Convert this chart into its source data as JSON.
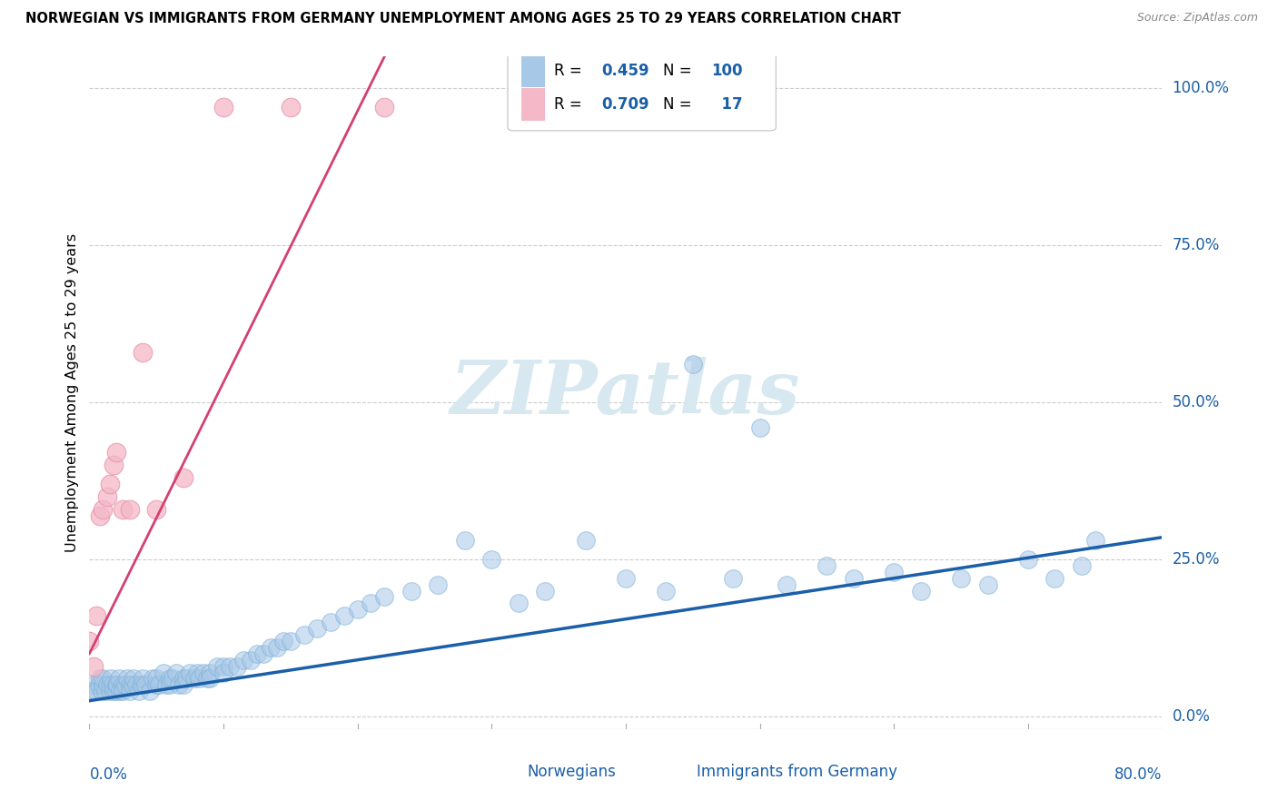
{
  "title": "NORWEGIAN VS IMMIGRANTS FROM GERMANY UNEMPLOYMENT AMONG AGES 25 TO 29 YEARS CORRELATION CHART",
  "source": "Source: ZipAtlas.com",
  "ylabel": "Unemployment Among Ages 25 to 29 years",
  "ytick_vals": [
    0.0,
    0.25,
    0.5,
    0.75,
    1.0
  ],
  "ytick_labels": [
    "0.0%",
    "25.0%",
    "50.0%",
    "75.0%",
    "100.0%"
  ],
  "xlim": [
    0.0,
    0.8
  ],
  "ylim": [
    -0.02,
    1.05
  ],
  "legend_blue_R": "0.459",
  "legend_blue_N": "100",
  "legend_pink_R": "0.709",
  "legend_pink_N": "17",
  "blue_fill": "#a8c8e8",
  "blue_edge": "#7aafd4",
  "blue_line_color": "#1a5fa8",
  "pink_fill": "#f4b8c8",
  "pink_edge": "#e890a8",
  "pink_line_color": "#d44070",
  "legend_text_color": "#1a5fa8",
  "watermark_color": "#d8e8f0",
  "norwegians_x": [
    0.0,
    0.003,
    0.005,
    0.007,
    0.008,
    0.009,
    0.01,
    0.01,
    0.012,
    0.013,
    0.015,
    0.015,
    0.016,
    0.017,
    0.018,
    0.02,
    0.02,
    0.021,
    0.022,
    0.023,
    0.025,
    0.025,
    0.027,
    0.028,
    0.03,
    0.03,
    0.032,
    0.033,
    0.035,
    0.037,
    0.038,
    0.04,
    0.04,
    0.042,
    0.045,
    0.047,
    0.05,
    0.05,
    0.052,
    0.055,
    0.057,
    0.06,
    0.06,
    0.062,
    0.065,
    0.067,
    0.07,
    0.07,
    0.072,
    0.075,
    0.078,
    0.08,
    0.082,
    0.085,
    0.088,
    0.09,
    0.09,
    0.095,
    0.1,
    0.1,
    0.105,
    0.11,
    0.115,
    0.12,
    0.125,
    0.13,
    0.135,
    0.14,
    0.145,
    0.15,
    0.16,
    0.17,
    0.18,
    0.19,
    0.2,
    0.21,
    0.22,
    0.24,
    0.26,
    0.28,
    0.3,
    0.32,
    0.34,
    0.37,
    0.4,
    0.43,
    0.45,
    0.48,
    0.5,
    0.52,
    0.55,
    0.57,
    0.6,
    0.62,
    0.65,
    0.67,
    0.7,
    0.72,
    0.74,
    0.75
  ],
  "norwegians_y": [
    0.04,
    0.05,
    0.04,
    0.05,
    0.06,
    0.04,
    0.05,
    0.06,
    0.04,
    0.05,
    0.04,
    0.05,
    0.06,
    0.05,
    0.04,
    0.04,
    0.05,
    0.05,
    0.06,
    0.04,
    0.05,
    0.04,
    0.05,
    0.06,
    0.05,
    0.04,
    0.05,
    0.06,
    0.05,
    0.04,
    0.05,
    0.05,
    0.06,
    0.05,
    0.04,
    0.06,
    0.05,
    0.06,
    0.05,
    0.07,
    0.05,
    0.05,
    0.06,
    0.06,
    0.07,
    0.05,
    0.06,
    0.05,
    0.06,
    0.07,
    0.06,
    0.07,
    0.06,
    0.07,
    0.06,
    0.07,
    0.06,
    0.08,
    0.08,
    0.07,
    0.08,
    0.08,
    0.09,
    0.09,
    0.1,
    0.1,
    0.11,
    0.11,
    0.12,
    0.12,
    0.13,
    0.14,
    0.15,
    0.16,
    0.17,
    0.18,
    0.19,
    0.2,
    0.21,
    0.28,
    0.25,
    0.18,
    0.2,
    0.28,
    0.22,
    0.2,
    0.56,
    0.22,
    0.46,
    0.21,
    0.24,
    0.22,
    0.23,
    0.2,
    0.22,
    0.21,
    0.25,
    0.22,
    0.24,
    0.28
  ],
  "immigrants_x": [
    0.0,
    0.003,
    0.005,
    0.008,
    0.01,
    0.013,
    0.015,
    0.018,
    0.02,
    0.025,
    0.03,
    0.04,
    0.05,
    0.07,
    0.1,
    0.15,
    0.22
  ],
  "immigrants_y": [
    0.12,
    0.08,
    0.16,
    0.32,
    0.33,
    0.35,
    0.37,
    0.4,
    0.42,
    0.33,
    0.33,
    0.58,
    0.33,
    0.38,
    0.97,
    0.97,
    0.97
  ],
  "blue_trend_x0": 0.0,
  "blue_trend_y0": 0.025,
  "blue_trend_x1": 0.8,
  "blue_trend_y1": 0.285,
  "pink_trend_x0": 0.0,
  "pink_trend_y0": 0.1,
  "pink_trend_x1": 0.22,
  "pink_trend_y1": 1.05
}
